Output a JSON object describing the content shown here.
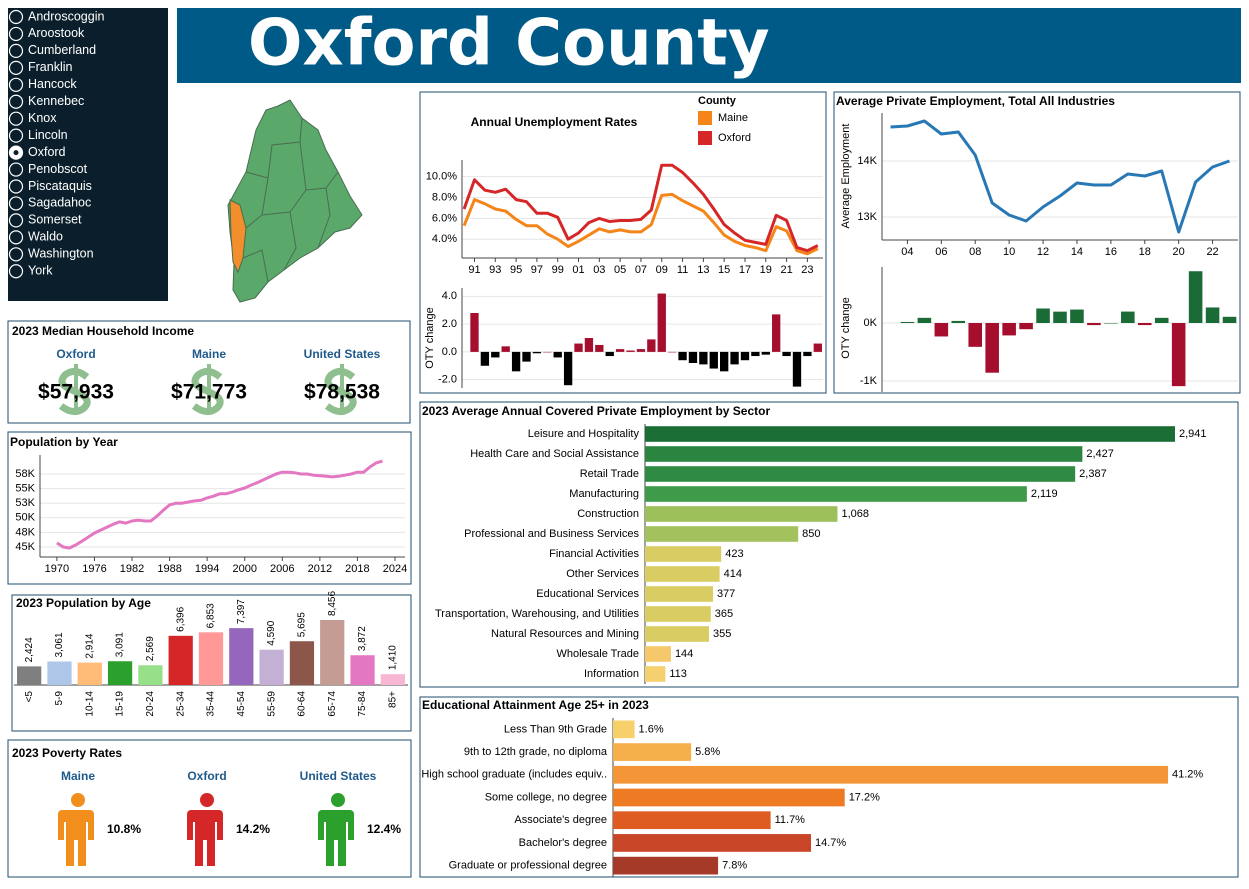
{
  "header": {
    "title": "Oxford County"
  },
  "counties": {
    "items": [
      "Androscoggin",
      "Aroostook",
      "Cumberland",
      "Franklin",
      "Hancock",
      "Kennebec",
      "Knox",
      "Lincoln",
      "Oxford",
      "Penobscot",
      "Piscataquis",
      "Sagadahoc",
      "Somerset",
      "Waldo",
      "Washington",
      "York"
    ],
    "selected": "Oxford"
  },
  "income": {
    "title": "2023 Median Household Income",
    "items": [
      {
        "name": "Oxford",
        "value": "$57,933"
      },
      {
        "name": "Maine",
        "value": "$71,773"
      },
      {
        "name": "United States",
        "value": "$78,538"
      }
    ]
  },
  "poverty": {
    "title": "2023 Poverty Rates",
    "items": [
      {
        "name": "Maine",
        "value": "10.8%",
        "color": "#f28e1c"
      },
      {
        "name": "Oxford",
        "value": "14.2%",
        "color": "#d62728"
      },
      {
        "name": "United States",
        "value": "12.4%",
        "color": "#2ca02c"
      }
    ]
  },
  "chart_data": [
    {
      "type": "line",
      "title": "Annual Unemployment Rates",
      "x": [
        1990,
        1991,
        1992,
        1993,
        1994,
        1995,
        1996,
        1997,
        1998,
        1999,
        2000,
        2001,
        2002,
        2003,
        2004,
        2005,
        2006,
        2007,
        2008,
        2009,
        2010,
        2011,
        2012,
        2013,
        2014,
        2015,
        2016,
        2017,
        2018,
        2019,
        2020,
        2021,
        2022,
        2023,
        2024
      ],
      "xlim": [
        1989.8,
        2024.5
      ],
      "xticks": [
        {
          "value": 1991,
          "label": "91"
        },
        {
          "value": 1993,
          "label": "93"
        },
        {
          "value": 1995,
          "label": "95"
        },
        {
          "value": 1997,
          "label": "97"
        },
        {
          "value": 1999,
          "label": "99"
        },
        {
          "value": 2001,
          "label": "01"
        },
        {
          "value": 2003,
          "label": "03"
        },
        {
          "value": 2005,
          "label": "05"
        },
        {
          "value": 2007,
          "label": "07"
        },
        {
          "value": 2009,
          "label": "09"
        },
        {
          "value": 2011,
          "label": "11"
        },
        {
          "value": 2013,
          "label": "13"
        },
        {
          "value": 2015,
          "label": "15"
        },
        {
          "value": 2017,
          "label": "17"
        },
        {
          "value": 2019,
          "label": "19"
        },
        {
          "value": 2021,
          "label": "21"
        },
        {
          "value": 2023,
          "label": "23"
        }
      ],
      "ylim": [
        2.2,
        11.6
      ],
      "yticks": [
        {
          "value": 4,
          "label": "4.0%"
        },
        {
          "value": 6,
          "label": "6.0%"
        },
        {
          "value": 8,
          "label": "8.0%"
        },
        {
          "value": 10,
          "label": "10.0%"
        }
      ],
      "grid": true,
      "legend": "top-right",
      "legend_title": "County",
      "series": [
        {
          "name": "Maine",
          "color": "#f58518",
          "values": [
            5.3,
            7.8,
            7.4,
            6.9,
            6.7,
            5.9,
            5.3,
            5.3,
            4.5,
            4.0,
            3.3,
            3.8,
            4.4,
            5.0,
            4.7,
            4.9,
            4.7,
            4.7,
            5.4,
            8.2,
            8.3,
            7.7,
            7.2,
            6.7,
            5.6,
            4.4,
            3.8,
            3.4,
            3.2,
            2.9,
            5.2,
            4.8,
            2.9,
            2.6,
            3.1
          ]
        },
        {
          "name": "Oxford",
          "color": "#d62728",
          "values": [
            6.9,
            9.7,
            8.7,
            8.5,
            8.8,
            7.8,
            7.6,
            6.5,
            6.5,
            6.1,
            4.0,
            4.6,
            5.6,
            6.0,
            5.7,
            5.8,
            5.8,
            5.9,
            6.8,
            11.1,
            11.1,
            10.4,
            9.4,
            8.3,
            6.9,
            5.4,
            4.6,
            3.9,
            3.7,
            3.5,
            6.3,
            5.8,
            3.2,
            2.9,
            3.4
          ]
        }
      ]
    },
    {
      "type": "bar",
      "y_label": "OTY change",
      "x": [
        1991,
        1992,
        1993,
        1994,
        1995,
        1996,
        1997,
        1998,
        1999,
        2000,
        2001,
        2002,
        2003,
        2004,
        2005,
        2006,
        2007,
        2008,
        2009,
        2010,
        2011,
        2012,
        2013,
        2014,
        2015,
        2016,
        2017,
        2018,
        2019,
        2020,
        2021,
        2022,
        2023,
        2024
      ],
      "xlim": [
        1989.8,
        2024.5
      ],
      "values": [
        2.8,
        -1.0,
        -0.4,
        0.4,
        -1.4,
        -0.7,
        -0.1,
        0.0,
        -0.4,
        -2.4,
        0.6,
        1.0,
        0.5,
        -0.3,
        0.2,
        0.1,
        0.2,
        0.9,
        4.2,
        0.0,
        -0.6,
        -0.8,
        -0.9,
        -1.2,
        -1.4,
        -0.9,
        -0.6,
        -0.3,
        -0.2,
        2.7,
        -0.3,
        -2.5,
        -0.3,
        0.6
      ],
      "ylim": [
        -2.6,
        4.6
      ],
      "yticks": [
        {
          "value": -2,
          "label": "-2.0"
        },
        {
          "value": 0,
          "label": "0.0"
        },
        {
          "value": 2,
          "label": "2.0"
        },
        {
          "value": 4,
          "label": "4.0"
        }
      ],
      "grid": true,
      "positive_color": "#a50f2d",
      "negative_color": "#000000"
    },
    {
      "type": "line",
      "title": "Average Private Employment, Total All Industries",
      "y_label": "Average Employment",
      "x": [
        2003,
        2004,
        2005,
        2006,
        2007,
        2008,
        2009,
        2010,
        2011,
        2012,
        2013,
        2014,
        2015,
        2016,
        2017,
        2018,
        2019,
        2020,
        2021,
        2022,
        2023
      ],
      "xlim": [
        2002.5,
        2023.5
      ],
      "xticks": [
        {
          "value": 2004,
          "label": "04"
        },
        {
          "value": 2006,
          "label": "06"
        },
        {
          "value": 2008,
          "label": "08"
        },
        {
          "value": 2010,
          "label": "10"
        },
        {
          "value": 2012,
          "label": "12"
        },
        {
          "value": 2014,
          "label": "14"
        },
        {
          "value": 2016,
          "label": "16"
        },
        {
          "value": 2018,
          "label": "18"
        },
        {
          "value": 2020,
          "label": "20"
        },
        {
          "value": 2022,
          "label": "22"
        }
      ],
      "ylim": [
        12589,
        14857
      ],
      "yticks": [
        {
          "value": 13000,
          "label": "13K"
        },
        {
          "value": 14000,
          "label": "14K"
        }
      ],
      "grid": true,
      "series": [
        {
          "name": "Average Employment",
          "color": "#2878b5",
          "values": [
            14607,
            14625,
            14714,
            14482,
            14518,
            14107,
            13250,
            13036,
            12929,
            13179,
            13375,
            13607,
            13571,
            13571,
            13768,
            13732,
            13821,
            12732,
            13625,
            13893,
            14000
          ]
        }
      ]
    },
    {
      "type": "bar",
      "y_label": "OTY change",
      "x": [
        2004,
        2005,
        2006,
        2007,
        2008,
        2009,
        2010,
        2011,
        2012,
        2013,
        2014,
        2015,
        2016,
        2017,
        2018,
        2019,
        2020,
        2021,
        2022,
        2023
      ],
      "xlim": [
        2002.5,
        2023.5
      ],
      "values": [
        18,
        89,
        -232,
        36,
        -411,
        -857,
        -214,
        -107,
        250,
        196,
        232,
        -36,
        0,
        197,
        -36,
        89,
        -1089,
        893,
        268,
        107
      ],
      "ylim": [
        -1190,
        966
      ],
      "yticks": [
        {
          "value": -1000,
          "label": "-1K"
        },
        {
          "value": 0,
          "label": "0K"
        }
      ],
      "grid": true,
      "positive_color": "#1a6b35",
      "negative_color": "#a50f2d"
    },
    {
      "type": "line",
      "title": "Population by Year",
      "x": [
        1970,
        1971,
        1972,
        1973,
        1974,
        1975,
        1976,
        1977,
        1978,
        1979,
        1980,
        1981,
        1982,
        1983,
        1984,
        1985,
        1986,
        1987,
        1988,
        1989,
        1990,
        1991,
        1992,
        1993,
        1994,
        1995,
        1996,
        1997,
        1998,
        1999,
        2000,
        2001,
        2002,
        2003,
        2004,
        2005,
        2006,
        2007,
        2008,
        2009,
        2010,
        2011,
        2012,
        2013,
        2014,
        2015,
        2016,
        2017,
        2018,
        2019,
        2020,
        2021,
        2022
      ],
      "xlim": [
        1967.3,
        2025.6
      ],
      "xticks": [
        1970,
        1976,
        1982,
        1988,
        1994,
        2000,
        2006,
        2012,
        2018,
        2024
      ],
      "ylim": [
        43290,
        60750
      ],
      "yticks": [
        {
          "value": 45000,
          "label": "45K"
        },
        {
          "value": 47500,
          "label": "48K"
        },
        {
          "value": 50000,
          "label": "50K"
        },
        {
          "value": 52500,
          "label": "53K"
        },
        {
          "value": 55000,
          "label": "55K"
        },
        {
          "value": 57500,
          "label": "58K"
        }
      ],
      "grid": true,
      "series": [
        {
          "name": "Population",
          "color": "#e377c2",
          "values": [
            45700,
            45000,
            44830,
            45340,
            46000,
            46700,
            47400,
            47900,
            48400,
            48900,
            49300,
            49100,
            49450,
            49600,
            49450,
            49450,
            50300,
            51300,
            52200,
            52500,
            52500,
            52700,
            52900,
            53000,
            53400,
            53700,
            54100,
            54100,
            54400,
            54800,
            55100,
            55600,
            56000,
            56500,
            57000,
            57500,
            57800,
            57800,
            57700,
            57500,
            57500,
            57300,
            57200,
            57100,
            57000,
            57100,
            57300,
            57500,
            57800,
            57800,
            58700,
            59400,
            59700
          ]
        }
      ]
    },
    {
      "type": "bar",
      "title": "2023 Population by Age",
      "categories": [
        "<5",
        "5-9",
        "10-14",
        "15-19",
        "20-24",
        "25-34",
        "35-44",
        "45-54",
        "55-59",
        "60-64",
        "65-74",
        "75-84",
        "85+"
      ],
      "values": [
        2424,
        3061,
        2914,
        3091,
        2569,
        6396,
        6853,
        7397,
        4590,
        5695,
        8456,
        3872,
        1410
      ],
      "value_labels": [
        "2,424",
        "3,061",
        "2,914",
        "3,091",
        "2,569",
        "6,396",
        "6,853",
        "7,397",
        "4,590",
        "5,695",
        "8,456",
        "3,872",
        "1,410"
      ],
      "colors": [
        "#7f7f7f",
        "#aec7e8",
        "#ffbb78",
        "#2ca02c",
        "#98df8a",
        "#d62728",
        "#ff9896",
        "#9467bd",
        "#c5b0d5",
        "#8c564b",
        "#c49c94",
        "#e377c2",
        "#f7b6d2"
      ]
    },
    {
      "type": "barh",
      "title": "2023 Average Annual Covered Private Employment by Sector",
      "categories": [
        "Leisure and Hospitality",
        "Health Care and Social Assistance",
        "Retail Trade",
        "Manufacturing",
        "Construction",
        "Professional and Business Services",
        "Financial Activities",
        "Other Services",
        "Educational Services",
        "Transportation, Warehousing, and Utilities",
        "Natural Resources and Mining",
        "Wholesale Trade",
        "Information"
      ],
      "values": [
        2941,
        2427,
        2387,
        2119,
        1068,
        850,
        423,
        414,
        377,
        365,
        355,
        144,
        113
      ],
      "value_labels": [
        "2,941",
        "2,427",
        "2,387",
        "2,119",
        "1,068",
        "850",
        "423",
        "414",
        "377",
        "365",
        "355",
        "144",
        "113"
      ],
      "colors": [
        "#1b6d36",
        "#2b8540",
        "#2f8a43",
        "#3f9a4a",
        "#9dc05a",
        "#a3c25d",
        "#d8cc62",
        "#d8cc62",
        "#d8cc62",
        "#d8cc62",
        "#d8cc62",
        "#f5c96b",
        "#f5d070"
      ]
    },
    {
      "type": "barh",
      "title": "Educational Attainment Age 25+ in 2023",
      "categories": [
        "Less Than 9th Grade",
        "9th to 12th grade, no diploma",
        "High school graduate (includes equiv..",
        "Some college, no degree",
        "Associate's degree",
        "Bachelor's degree",
        "Graduate or professional degree"
      ],
      "values": [
        1.6,
        5.8,
        41.2,
        17.2,
        11.7,
        14.7,
        7.8
      ],
      "value_labels": [
        "1.6%",
        "5.8%",
        "41.2%",
        "17.2%",
        "11.7%",
        "14.7%",
        "7.8%"
      ],
      "colors": [
        "#f8d06b",
        "#f5b04c",
        "#f49537",
        "#ee7a23",
        "#de5b22",
        "#c84627",
        "#a43a27"
      ]
    }
  ]
}
